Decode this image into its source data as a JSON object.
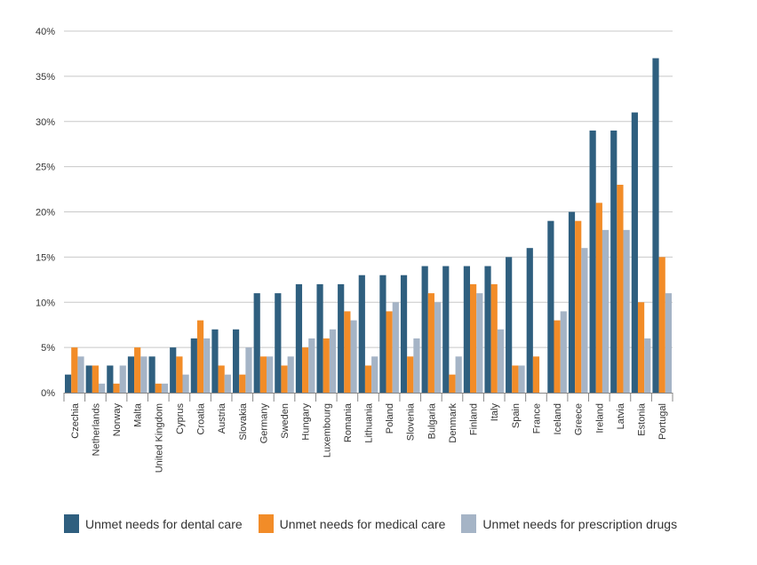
{
  "chart_data": {
    "type": "bar",
    "title": "",
    "xlabel": "",
    "ylabel": "",
    "ylim": [
      0,
      40
    ],
    "y_ticks": [
      "0%",
      "5%",
      "10%",
      "15%",
      "20%",
      "25%",
      "30%",
      "35%",
      "40%"
    ],
    "grid": "horizontal",
    "legend_position": "bottom",
    "categories": [
      "Czechia",
      "Netherlands",
      "Norway",
      "Malta",
      "United Kingdom",
      "Cyprus",
      "Croatia",
      "Austria",
      "Slovakia",
      "Germany",
      "Sweden",
      "Hungary",
      "Luxembourg",
      "Romania",
      "Lithuania",
      "Poland",
      "Slovenia",
      "Bulgaria",
      "Denmark",
      "Finland",
      "Italy",
      "Spain",
      "France",
      "Iceland",
      "Greece",
      "Ireland",
      "Latvia",
      "Estonia",
      "Portugal"
    ],
    "series": [
      {
        "name": "Unmet needs for dental care",
        "color": "#2f5f7f",
        "values": [
          2,
          3,
          3,
          4,
          4,
          5,
          6,
          7,
          7,
          11,
          11,
          12,
          12,
          12,
          13,
          13,
          13,
          14,
          14,
          14,
          14,
          15,
          16,
          19,
          20,
          29,
          29,
          31,
          37
        ]
      },
      {
        "name": "Unmet needs for medical care",
        "color": "#f28c28",
        "values": [
          5,
          3,
          1,
          5,
          1,
          4,
          8,
          3,
          2,
          4,
          3,
          5,
          6,
          9,
          3,
          9,
          4,
          11,
          2,
          12,
          12,
          3,
          4,
          8,
          19,
          21,
          23,
          10,
          15
        ]
      },
      {
        "name": "Unmet needs for prescription drugs",
        "color": "#a5b4c6",
        "values": [
          4,
          1,
          3,
          4,
          1,
          2,
          6,
          2,
          5,
          4,
          4,
          6,
          7,
          8,
          4,
          10,
          6,
          10,
          4,
          11,
          7,
          3,
          null,
          9,
          16,
          18,
          18,
          6,
          11
        ]
      }
    ]
  }
}
